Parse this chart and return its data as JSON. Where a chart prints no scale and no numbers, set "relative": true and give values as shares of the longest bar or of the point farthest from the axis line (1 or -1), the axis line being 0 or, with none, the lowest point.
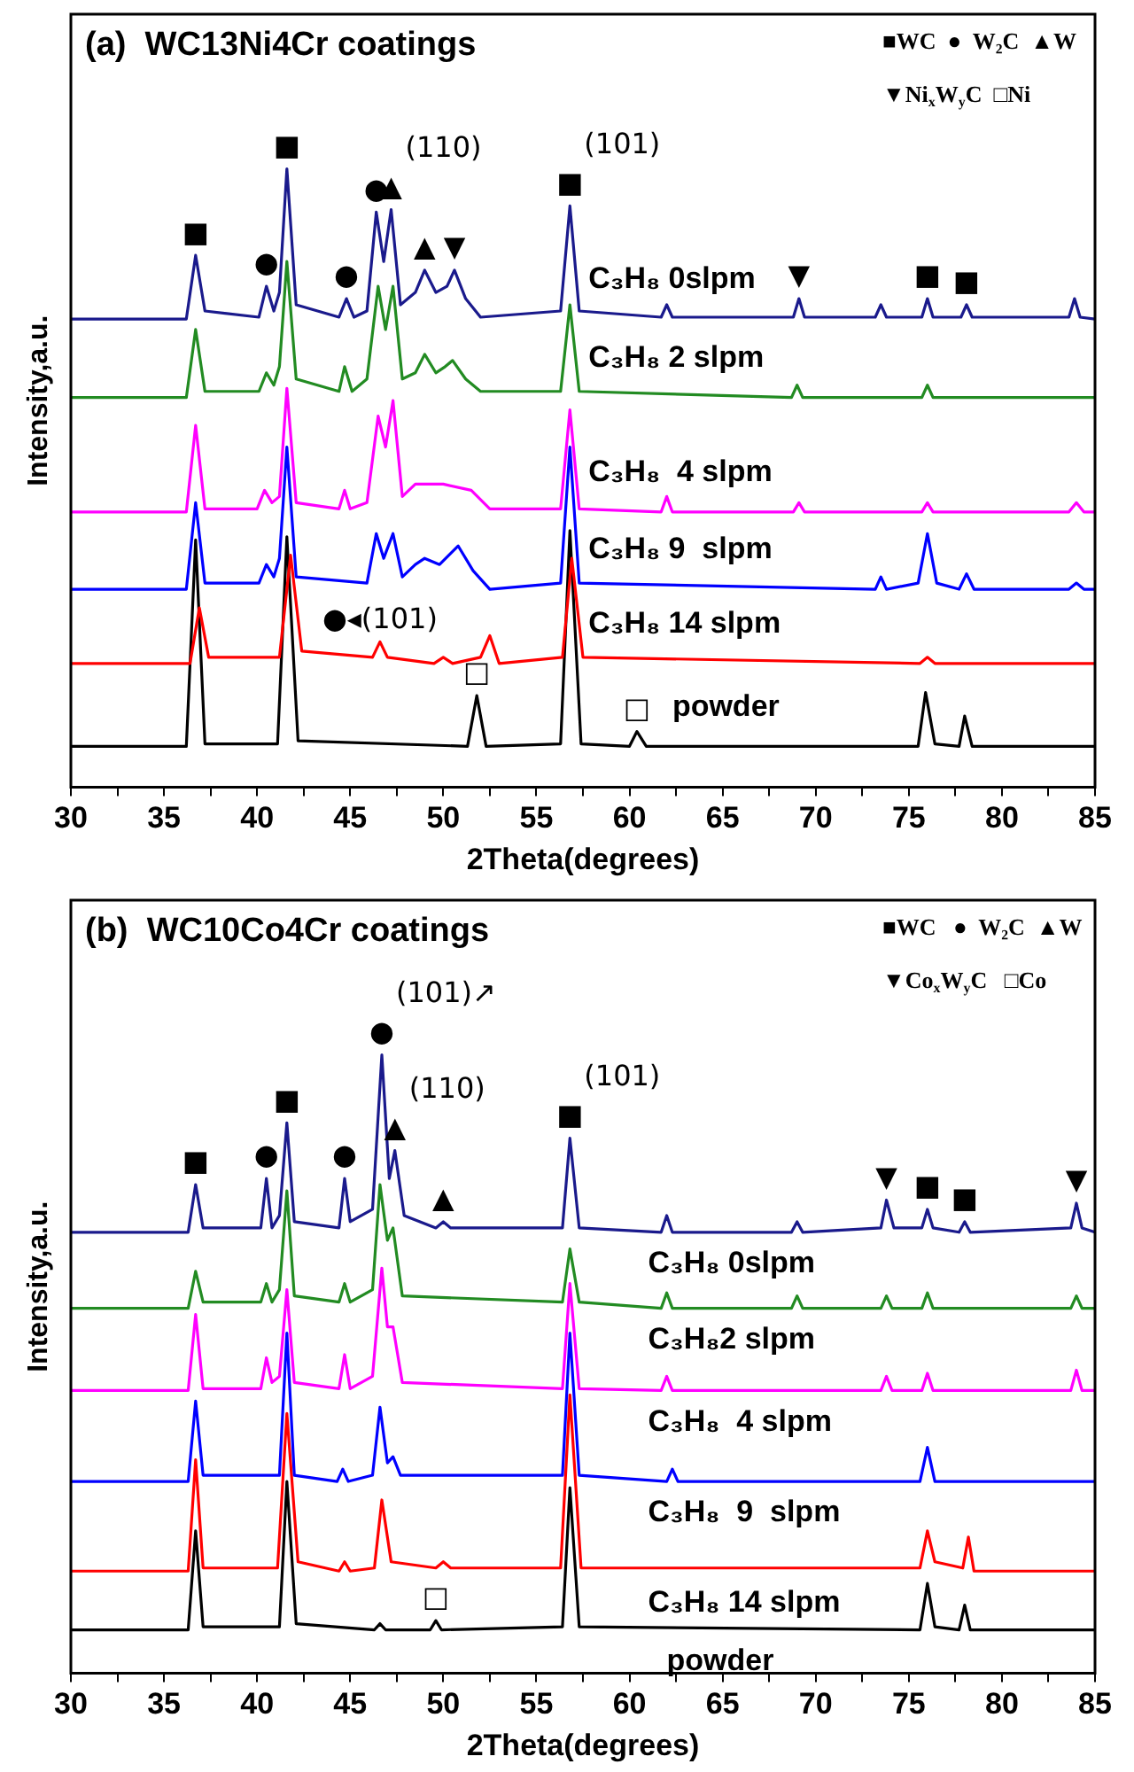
{
  "chart_data": [
    {
      "type": "line",
      "title": "(a)  WC13Ni4Cr coatings",
      "xlabel": "2Theta(degrees)",
      "ylabel": "Intensity,a.u.",
      "relative": true,
      "grid": false,
      "legend": false,
      "tick_labels": "x",
      "marker": "none",
      "xlim": [
        30,
        85
      ],
      "xticks": [
        30,
        {
          "value": 32.5,
          "label": null
        },
        35,
        {
          "value": 37.5,
          "label": null
        },
        40,
        {
          "value": 42.5,
          "label": null
        },
        45,
        {
          "value": 47.5,
          "label": null
        },
        50,
        {
          "value": 52.5,
          "label": null
        },
        55,
        {
          "value": 57.5,
          "label": null
        },
        60,
        {
          "value": 62.5,
          "label": null
        },
        65,
        {
          "value": 67.5,
          "label": null
        },
        70,
        {
          "value": 72.5,
          "label": null
        },
        75,
        {
          "value": 77.5,
          "label": null
        },
        80,
        {
          "value": 82.5,
          "label": null
        },
        85
      ],
      "series": [
        {
          "name": "C₃H₈ 0slpm",
          "color": "#1a1a8c",
          "x": [
            30,
            36.2,
            36.7,
            37.2,
            40.1,
            40.5,
            40.9,
            41.2,
            41.6,
            42.1,
            44.4,
            44.8,
            45.2,
            45.9,
            46.4,
            46.8,
            47.2,
            47.7,
            48.5,
            49,
            49.6,
            50.2,
            50.6,
            51.2,
            52,
            56.3,
            56.8,
            57.3,
            61.7,
            62,
            62.3,
            68.8,
            69.1,
            69.4,
            73.2,
            73.5,
            73.8,
            75.7,
            76,
            76.3,
            77.8,
            78.1,
            78.4,
            83.6,
            83.9,
            84.2,
            85
          ],
          "values": [
            0.757,
            0.757,
            0.86,
            0.77,
            0.76,
            0.81,
            0.77,
            0.8,
            1,
            0.78,
            0.76,
            0.79,
            0.76,
            0.77,
            0.93,
            0.85,
            0.934,
            0.78,
            0.8,
            0.836,
            0.8,
            0.81,
            0.836,
            0.79,
            0.76,
            0.77,
            0.94,
            0.77,
            0.76,
            0.78,
            0.76,
            0.76,
            0.79,
            0.76,
            0.76,
            0.78,
            0.76,
            0.76,
            0.79,
            0.76,
            0.76,
            0.78,
            0.76,
            0.76,
            0.79,
            0.76,
            0.757
          ]
        },
        {
          "name": "C₃H₈ 2 slpm",
          "color": "#228b22",
          "x": [
            30,
            36.2,
            36.7,
            37.2,
            40.1,
            40.5,
            40.9,
            41.2,
            41.6,
            42.1,
            44.4,
            44.7,
            45.1,
            45.9,
            46.5,
            46.9,
            47.3,
            47.8,
            48.5,
            49,
            49.6,
            50.1,
            50.5,
            51.2,
            52,
            56.3,
            56.8,
            57.3,
            68.7,
            69,
            69.3,
            75.7,
            76,
            76.3,
            85
          ],
          "values": [
            0.63,
            0.63,
            0.74,
            0.64,
            0.64,
            0.67,
            0.65,
            0.68,
            0.85,
            0.66,
            0.64,
            0.68,
            0.64,
            0.66,
            0.81,
            0.74,
            0.81,
            0.66,
            0.67,
            0.7,
            0.67,
            0.68,
            0.69,
            0.66,
            0.64,
            0.64,
            0.78,
            0.64,
            0.63,
            0.65,
            0.63,
            0.63,
            0.65,
            0.63,
            0.63
          ]
        },
        {
          "name": "C₃H₈  4 slpm",
          "color": "#ff00ff",
          "x": [
            30,
            36.2,
            36.7,
            37.2,
            40,
            40.4,
            40.8,
            41.2,
            41.6,
            42.1,
            44.4,
            44.7,
            45,
            45.9,
            46.5,
            46.9,
            47.3,
            47.8,
            48.5,
            50,
            51.5,
            52.5,
            56.3,
            56.8,
            57.3,
            61.7,
            62,
            62.3,
            68.8,
            69.1,
            69.4,
            75.7,
            76,
            76.3,
            83.6,
            84,
            84.4,
            85
          ],
          "values": [
            0.445,
            0.445,
            0.585,
            0.45,
            0.45,
            0.48,
            0.46,
            0.47,
            0.645,
            0.46,
            0.45,
            0.48,
            0.45,
            0.46,
            0.6,
            0.55,
            0.625,
            0.47,
            0.49,
            0.49,
            0.48,
            0.45,
            0.45,
            0.61,
            0.45,
            0.445,
            0.47,
            0.445,
            0.445,
            0.46,
            0.445,
            0.445,
            0.46,
            0.445,
            0.445,
            0.46,
            0.445,
            0.445
          ]
        },
        {
          "name": "C₃H₈ 9  slpm",
          "color": "#0000ff",
          "x": [
            30,
            36.2,
            36.7,
            37.2,
            40.1,
            40.5,
            40.9,
            41.2,
            41.6,
            42.1,
            45.9,
            46.4,
            46.8,
            47.3,
            47.8,
            48.5,
            49,
            49.8,
            50.8,
            51.6,
            52.5,
            56.3,
            56.8,
            57.3,
            73.2,
            73.5,
            73.8,
            75.5,
            76,
            76.5,
            77.7,
            78.1,
            78.5,
            83.6,
            84,
            84.4,
            85
          ],
          "values": [
            0.32,
            0.32,
            0.46,
            0.33,
            0.33,
            0.36,
            0.34,
            0.37,
            0.55,
            0.34,
            0.33,
            0.41,
            0.37,
            0.41,
            0.34,
            0.36,
            0.37,
            0.36,
            0.39,
            0.35,
            0.32,
            0.33,
            0.55,
            0.33,
            0.32,
            0.34,
            0.32,
            0.33,
            0.41,
            0.33,
            0.32,
            0.345,
            0.32,
            0.32,
            0.33,
            0.32,
            0.32
          ]
        },
        {
          "name": "C₃H₈ 14 slpm",
          "color": "#ff0000",
          "x": [
            30,
            36.4,
            36.9,
            37.4,
            41.2,
            41.8,
            42.4,
            46.2,
            46.6,
            47,
            49.5,
            50,
            50.5,
            52,
            52.5,
            53,
            56.4,
            56.9,
            57.5,
            75.6,
            76,
            76.4,
            85
          ],
          "values": [
            0.2,
            0.2,
            0.29,
            0.21,
            0.21,
            0.375,
            0.22,
            0.21,
            0.235,
            0.21,
            0.2,
            0.21,
            0.2,
            0.21,
            0.245,
            0.2,
            0.21,
            0.37,
            0.21,
            0.2,
            0.21,
            0.2,
            0.2
          ]
        },
        {
          "name": "powder",
          "color": "#000000",
          "x": [
            30,
            36.2,
            36.7,
            37.2,
            41.1,
            41.6,
            42.2,
            51.3,
            51.8,
            52.3,
            56.3,
            56.8,
            57.4,
            60,
            60.4,
            60.9,
            75.5,
            75.9,
            76.4,
            77.7,
            78,
            78.4,
            85
          ],
          "values": [
            0.066,
            0.066,
            0.4,
            0.07,
            0.07,
            0.405,
            0.075,
            0.066,
            0.148,
            0.066,
            0.07,
            0.415,
            0.07,
            0.066,
            0.09,
            0.066,
            0.066,
            0.153,
            0.07,
            0.066,
            0.115,
            0.066,
            0.066
          ]
        }
      ],
      "annotations": [
        "■WC  ●  W₂C  ▲W",
        "▼Ni$_{x}$W$_{y}$C  □Ni",
        {
          "text": "■",
          "x": 36.7,
          "y": 0.86
        },
        {
          "text": "●",
          "x": 40.5,
          "y": 0.81
        },
        {
          "text": "■",
          "x": 41.6,
          "y": 1
        },
        {
          "text": "●",
          "x": 44.8,
          "y": 0.79
        },
        {
          "text": "●",
          "x": 46.4,
          "y": 0.93
        },
        {
          "text": "▲",
          "x": 47.2,
          "y": 0.934
        },
        {
          "text": "(110)",
          "x": 47.2,
          "y": 0.934
        },
        {
          "text": "▲",
          "x": 49,
          "y": 0.836
        },
        {
          "text": "▼",
          "x": 50.6,
          "y": 0.836
        },
        {
          "text": "■",
          "x": 56.8,
          "y": 0.94
        },
        {
          "text": "(101)",
          "x": 56.8,
          "y": 0.94
        },
        {
          "text": "▼",
          "x": 69.1,
          "y": 0.79
        },
        {
          "text": "■",
          "x": 76,
          "y": 0.79
        },
        {
          "text": "■",
          "x": 78.1,
          "y": 0.78
        },
        {
          "text": "●◂(101)",
          "x": 46.6,
          "y": 0.235
        },
        {
          "text": "□",
          "x": 51.8,
          "y": 0.148
        },
        {
          "text": "□",
          "x": 60.4,
          "y": 0.09
        }
      ]
    },
    {
      "type": "line",
      "title": "(b)  WC10Co4Cr coatings",
      "xlabel": "2Theta(degrees)",
      "ylabel": "Intensity,a.u.",
      "relative": true,
      "grid": false,
      "legend": false,
      "tick_labels": "x",
      "marker": "none",
      "xlim": [
        30,
        85
      ],
      "xticks": [
        30,
        {
          "value": 32.5,
          "label": null
        },
        35,
        {
          "value": 37.5,
          "label": null
        },
        40,
        {
          "value": 42.5,
          "label": null
        },
        45,
        {
          "value": 47.5,
          "label": null
        },
        50,
        {
          "value": 52.5,
          "label": null
        },
        55,
        {
          "value": 57.5,
          "label": null
        },
        60,
        {
          "value": 62.5,
          "label": null
        },
        65,
        {
          "value": 67.5,
          "label": null
        },
        70,
        {
          "value": 72.5,
          "label": null
        },
        75,
        {
          "value": 77.5,
          "label": null
        },
        80,
        {
          "value": 82.5,
          "label": null
        },
        85
      ],
      "series": [
        {
          "name": "C₃H₈ 0slpm",
          "color": "#1a1a8c",
          "x": [
            30,
            36.3,
            36.7,
            37.1,
            40.2,
            40.5,
            40.8,
            41.2,
            41.6,
            42,
            44.4,
            44.7,
            45,
            46.2,
            46.7,
            47.1,
            47.4,
            47.9,
            49.6,
            50,
            50.4,
            56.4,
            56.8,
            57.3,
            61.7,
            62,
            62.3,
            68.7,
            69,
            69.3,
            73.5,
            73.8,
            74.2,
            75.7,
            76,
            76.3,
            77.7,
            78,
            78.3,
            83.7,
            84,
            84.3,
            85
          ],
          "values": [
            0.713,
            0.713,
            0.79,
            0.72,
            0.72,
            0.8,
            0.72,
            0.74,
            0.89,
            0.73,
            0.72,
            0.8,
            0.73,
            0.75,
            1,
            0.8,
            0.845,
            0.74,
            0.72,
            0.73,
            0.72,
            0.72,
            0.865,
            0.72,
            0.713,
            0.74,
            0.713,
            0.713,
            0.73,
            0.713,
            0.72,
            0.765,
            0.72,
            0.72,
            0.75,
            0.72,
            0.713,
            0.73,
            0.713,
            0.72,
            0.76,
            0.72,
            0.713
          ]
        },
        {
          "name": "C₃H₈2 slpm",
          "color": "#228b22",
          "x": [
            30,
            36.3,
            36.7,
            37.1,
            40.2,
            40.5,
            40.8,
            41.2,
            41.6,
            42,
            44.4,
            44.7,
            45,
            46.2,
            46.6,
            47,
            47.3,
            47.8,
            56.4,
            56.8,
            57.3,
            61.7,
            62,
            62.3,
            68.7,
            69,
            69.3,
            73.5,
            73.8,
            74.1,
            75.7,
            76,
            76.3,
            83.7,
            84,
            84.3,
            85
          ],
          "values": [
            0.59,
            0.59,
            0.65,
            0.6,
            0.6,
            0.63,
            0.6,
            0.62,
            0.78,
            0.61,
            0.6,
            0.63,
            0.6,
            0.62,
            0.79,
            0.7,
            0.72,
            0.61,
            0.6,
            0.686,
            0.6,
            0.59,
            0.615,
            0.59,
            0.59,
            0.61,
            0.59,
            0.59,
            0.61,
            0.59,
            0.59,
            0.615,
            0.59,
            0.59,
            0.61,
            0.59,
            0.59
          ]
        },
        {
          "name": "C₃H₈  4 slpm",
          "color": "#ff00ff",
          "x": [
            30,
            36.3,
            36.7,
            37.1,
            40.2,
            40.5,
            40.8,
            41.2,
            41.6,
            42,
            44.4,
            44.7,
            45,
            46.2,
            46.7,
            47,
            47.3,
            47.8,
            56.4,
            56.8,
            57.3,
            61.7,
            62,
            62.3,
            73.5,
            73.8,
            74.1,
            75.7,
            76,
            76.3,
            83.7,
            84,
            84.3,
            85
          ],
          "values": [
            0.457,
            0.457,
            0.58,
            0.46,
            0.46,
            0.51,
            0.47,
            0.48,
            0.62,
            0.47,
            0.46,
            0.515,
            0.46,
            0.48,
            0.655,
            0.56,
            0.56,
            0.47,
            0.46,
            0.63,
            0.46,
            0.457,
            0.48,
            0.457,
            0.457,
            0.48,
            0.457,
            0.457,
            0.485,
            0.457,
            0.457,
            0.49,
            0.457,
            0.457
          ]
        },
        {
          "name": "C₃H₈  9  slpm",
          "color": "#0000ff",
          "x": [
            30,
            36.3,
            36.7,
            37.1,
            41.2,
            41.6,
            42,
            44.3,
            44.6,
            44.9,
            46.2,
            46.6,
            47,
            47.3,
            47.7,
            56.4,
            56.8,
            57.3,
            62,
            62.3,
            62.6,
            75.6,
            76,
            76.4,
            85
          ],
          "values": [
            0.31,
            0.31,
            0.44,
            0.32,
            0.32,
            0.55,
            0.32,
            0.31,
            0.33,
            0.31,
            0.32,
            0.43,
            0.34,
            0.35,
            0.32,
            0.32,
            0.55,
            0.32,
            0.31,
            0.33,
            0.31,
            0.31,
            0.365,
            0.31,
            0.31
          ]
        },
        {
          "name": "C₃H₈ 14 slpm",
          "color": "#ff0000",
          "x": [
            30,
            36.3,
            36.7,
            37.1,
            41.1,
            41.6,
            42.2,
            44.4,
            44.7,
            45,
            46.3,
            46.7,
            47.2,
            49.6,
            50,
            50.4,
            56.3,
            56.8,
            57.4,
            75.6,
            76,
            76.4,
            77.9,
            78.2,
            78.5,
            85
          ],
          "values": [
            0.165,
            0.165,
            0.345,
            0.17,
            0.17,
            0.42,
            0.18,
            0.165,
            0.18,
            0.165,
            0.17,
            0.28,
            0.18,
            0.17,
            0.18,
            0.17,
            0.17,
            0.45,
            0.17,
            0.17,
            0.23,
            0.18,
            0.17,
            0.22,
            0.165,
            0.165
          ]
        },
        {
          "name": "powder",
          "color": "#000000",
          "x": [
            30,
            36.3,
            36.7,
            37.1,
            41.2,
            41.6,
            42.1,
            46.3,
            46.6,
            46.9,
            49.3,
            49.6,
            49.9,
            56.4,
            56.8,
            57.3,
            75.6,
            76,
            76.4,
            77.7,
            78,
            78.3,
            85
          ],
          "values": [
            0.07,
            0.07,
            0.23,
            0.075,
            0.075,
            0.31,
            0.08,
            0.07,
            0.08,
            0.07,
            0.07,
            0.085,
            0.07,
            0.075,
            0.3,
            0.075,
            0.07,
            0.145,
            0.075,
            0.07,
            0.11,
            0.07,
            0.07
          ]
        }
      ],
      "annotations": [
        "■WC   ●  W₂C  ▲W",
        "▼Co$_{x}$W$_{y}$C   □Co",
        {
          "text": "■",
          "x": 36.7,
          "y": 0.79
        },
        {
          "text": "●",
          "x": 40.5,
          "y": 0.8
        },
        {
          "text": "■",
          "x": 41.6,
          "y": 0.89
        },
        {
          "text": "●",
          "x": 44.7,
          "y": 0.8
        },
        {
          "text": "●",
          "x": 46.7,
          "y": 1
        },
        {
          "text": "(101)↗",
          "x": 46.7,
          "y": 1
        },
        {
          "text": "▲",
          "x": 47.4,
          "y": 0.845
        },
        {
          "text": "(110)",
          "x": 47.4,
          "y": 0.845
        },
        {
          "text": "▲",
          "x": 50,
          "y": 0.73
        },
        {
          "text": "■",
          "x": 56.8,
          "y": 0.865
        },
        {
          "text": "(101)",
          "x": 56.8,
          "y": 0.865
        },
        {
          "text": "▼",
          "x": 73.8,
          "y": 0.765
        },
        {
          "text": "■",
          "x": 76,
          "y": 0.75
        },
        {
          "text": "■",
          "x": 78,
          "y": 0.73
        },
        {
          "text": "▼",
          "x": 84,
          "y": 0.76
        },
        {
          "text": "□",
          "x": 49.6,
          "y": 0.085
        }
      ]
    }
  ]
}
